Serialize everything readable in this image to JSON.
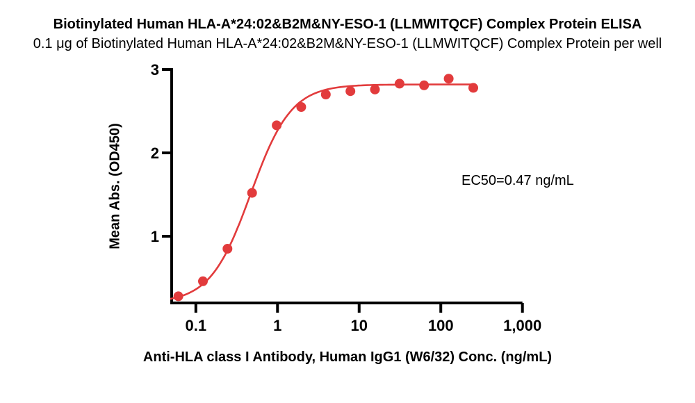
{
  "chart_data": {
    "type": "scatter",
    "title": "Biotinylated Human HLA-A*24:02&B2M&NY-ESO-1 (LLMWITQCF) Complex Protein ELISA",
    "subtitle": "0.1 μg of Biotinylated Human HLA-A*24:02&B2M&NY-ESO-1 (LLMWITQCF) Complex Protein per well",
    "xlabel": "Anti-HLA class I Antibody, Human IgG1 (W6/32) Conc. (ng/mL)",
    "ylabel": "Mean Abs. (OD450)",
    "annotation": "EC50=0.47 ng/mL",
    "ec50_ng_ml": 0.47,
    "x_scale": "log10",
    "xlim": [
      0.0486,
      1000
    ],
    "ylim": [
      0.2,
      3.0
    ],
    "grid": false,
    "legend": "none",
    "axis_color": "#000000",
    "xticks": [
      {
        "value": 0.1,
        "label": "0.1"
      },
      {
        "value": 1,
        "label": "1"
      },
      {
        "value": 10,
        "label": "10"
      },
      {
        "value": 100,
        "label": "100"
      },
      {
        "value": 1000,
        "label": "1,000"
      }
    ],
    "yticks": [
      {
        "value": 1,
        "label": "1"
      },
      {
        "value": 2,
        "label": "2"
      },
      {
        "value": 3,
        "label": "3"
      }
    ],
    "series": [
      {
        "name": "Mean Abs. (OD450)",
        "color": "#E23B3C",
        "marker": "circle",
        "points": [
          [
            0.061,
            0.28
          ],
          [
            0.122,
            0.46
          ],
          [
            0.244,
            0.85
          ],
          [
            0.488,
            1.52
          ],
          [
            0.977,
            2.33
          ],
          [
            1.953,
            2.55
          ],
          [
            3.906,
            2.7
          ],
          [
            7.813,
            2.74
          ],
          [
            15.625,
            2.76
          ],
          [
            31.25,
            2.83
          ],
          [
            62.5,
            2.81
          ],
          [
            125,
            2.89
          ],
          [
            250,
            2.78
          ]
        ]
      }
    ],
    "fit_curve": {
      "model": "4PL",
      "bottom": 0.2,
      "top": 2.82,
      "ec50": 0.47,
      "hill": 1.75,
      "x_start": 0.0486,
      "x_end": 250,
      "color": "#E23B3C"
    }
  }
}
